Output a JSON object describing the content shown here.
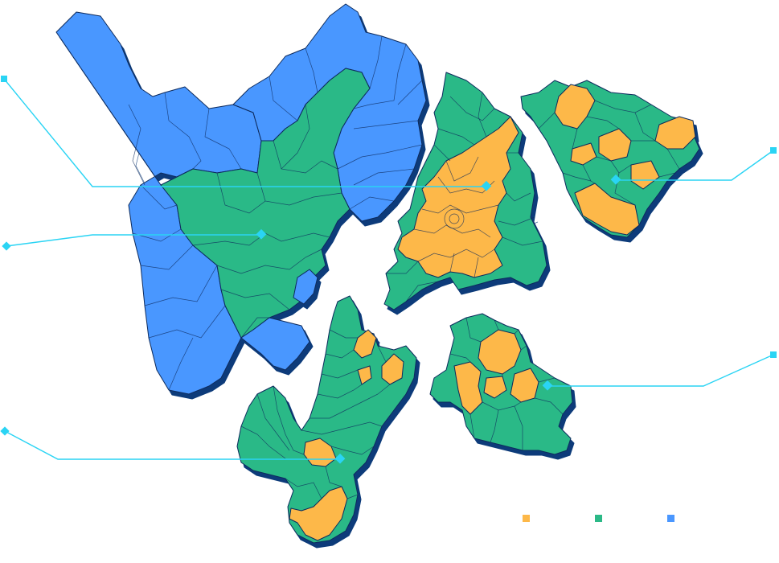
{
  "map": {
    "colors": {
      "blue": "#4a97ff",
      "green": "#2cb987",
      "orange": "#fdb849",
      "border": "#0c2a5c",
      "shadow": "#0a3b7a",
      "leader": "#2ad4f4"
    }
  },
  "legend": {
    "items": [
      {
        "label": "",
        "color": "#fdb849"
      },
      {
        "label": "",
        "color": "#2cb987"
      },
      {
        "label": "",
        "color": "#4a97ff"
      }
    ]
  }
}
